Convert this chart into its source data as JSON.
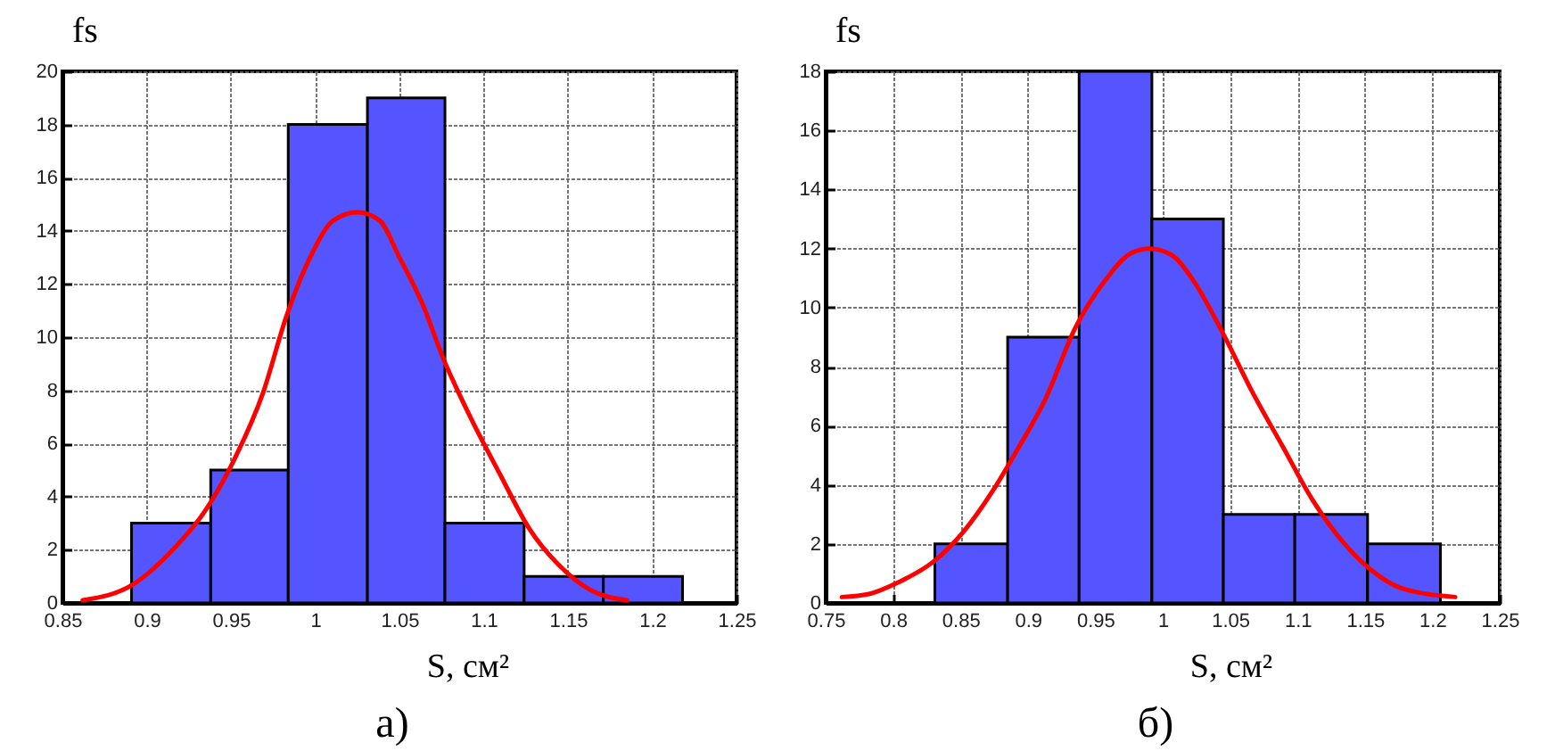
{
  "chart_data": [
    {
      "type": "histogram",
      "xlabel": "S, см²",
      "ylabel": "fs",
      "annotations": [
        "а)"
      ],
      "bins": [
        0.891,
        0.938,
        0.984,
        1.031,
        1.077,
        1.124,
        1.171,
        1.218
      ],
      "series": [
        {
          "color": "#5555ff",
          "values": [
            3,
            5,
            18,
            19,
            3,
            1,
            1
          ]
        },
        {
          "type": "line",
          "color": "#ff0000",
          "x": [
            0.862,
            0.892,
            0.917,
            0.934,
            0.952,
            0.969,
            0.983,
            0.997,
            1.011,
            1.025,
            1.038,
            1.05,
            1.064,
            1.076,
            1.092,
            1.11,
            1.127,
            1.145,
            1.163,
            1.185
          ],
          "values": [
            0.1,
            0.7,
            2.1,
            3.4,
            5.4,
            7.9,
            10.8,
            13.0,
            14.4,
            14.7,
            14.4,
            13.0,
            11.2,
            9.2,
            7.0,
            4.8,
            2.8,
            1.4,
            0.5,
            0.1
          ]
        }
      ],
      "xlim": [
        0.85,
        1.25
      ],
      "xticks": [
        0.85,
        0.9,
        0.95,
        1,
        1.05,
        1.1,
        1.15,
        1.2,
        1.25
      ],
      "ylim": [
        0,
        20
      ],
      "yticks": [
        0,
        2,
        4,
        6,
        8,
        10,
        12,
        14,
        16,
        18,
        20
      ],
      "grid": true
    },
    {
      "type": "histogram",
      "xlabel": "S, см²",
      "ylabel": "fs",
      "annotations": [
        "б)"
      ],
      "bins": [
        0.831,
        0.885,
        0.938,
        0.992,
        1.045,
        1.098,
        1.152,
        1.206
      ],
      "series": [
        {
          "color": "#5555ff",
          "values": [
            2,
            9,
            18,
            13,
            3,
            3,
            2
          ]
        },
        {
          "type": "line",
          "color": "#ff0000",
          "x": [
            0.762,
            0.782,
            0.804,
            0.83,
            0.852,
            0.874,
            0.891,
            0.913,
            0.935,
            0.957,
            0.975,
            0.99,
            1.006,
            1.023,
            1.045,
            1.067,
            1.089,
            1.111,
            1.133,
            1.155,
            1.177,
            1.217
          ],
          "values": [
            0.2,
            0.3,
            0.7,
            1.4,
            2.4,
            3.8,
            5.1,
            6.9,
            9.3,
            10.9,
            11.8,
            12.0,
            11.8,
            10.9,
            9.1,
            7.1,
            5.3,
            3.5,
            2.1,
            1.1,
            0.5,
            0.2
          ]
        }
      ],
      "xlim": [
        0.75,
        1.25
      ],
      "xticks": [
        0.75,
        0.8,
        0.85,
        0.9,
        0.95,
        1,
        1.05,
        1.1,
        1.15,
        1.2,
        1.25
      ],
      "ylim": [
        0,
        18
      ],
      "yticks": [
        0,
        2,
        4,
        6,
        8,
        10,
        12,
        14,
        16,
        18
      ],
      "grid": true
    }
  ]
}
